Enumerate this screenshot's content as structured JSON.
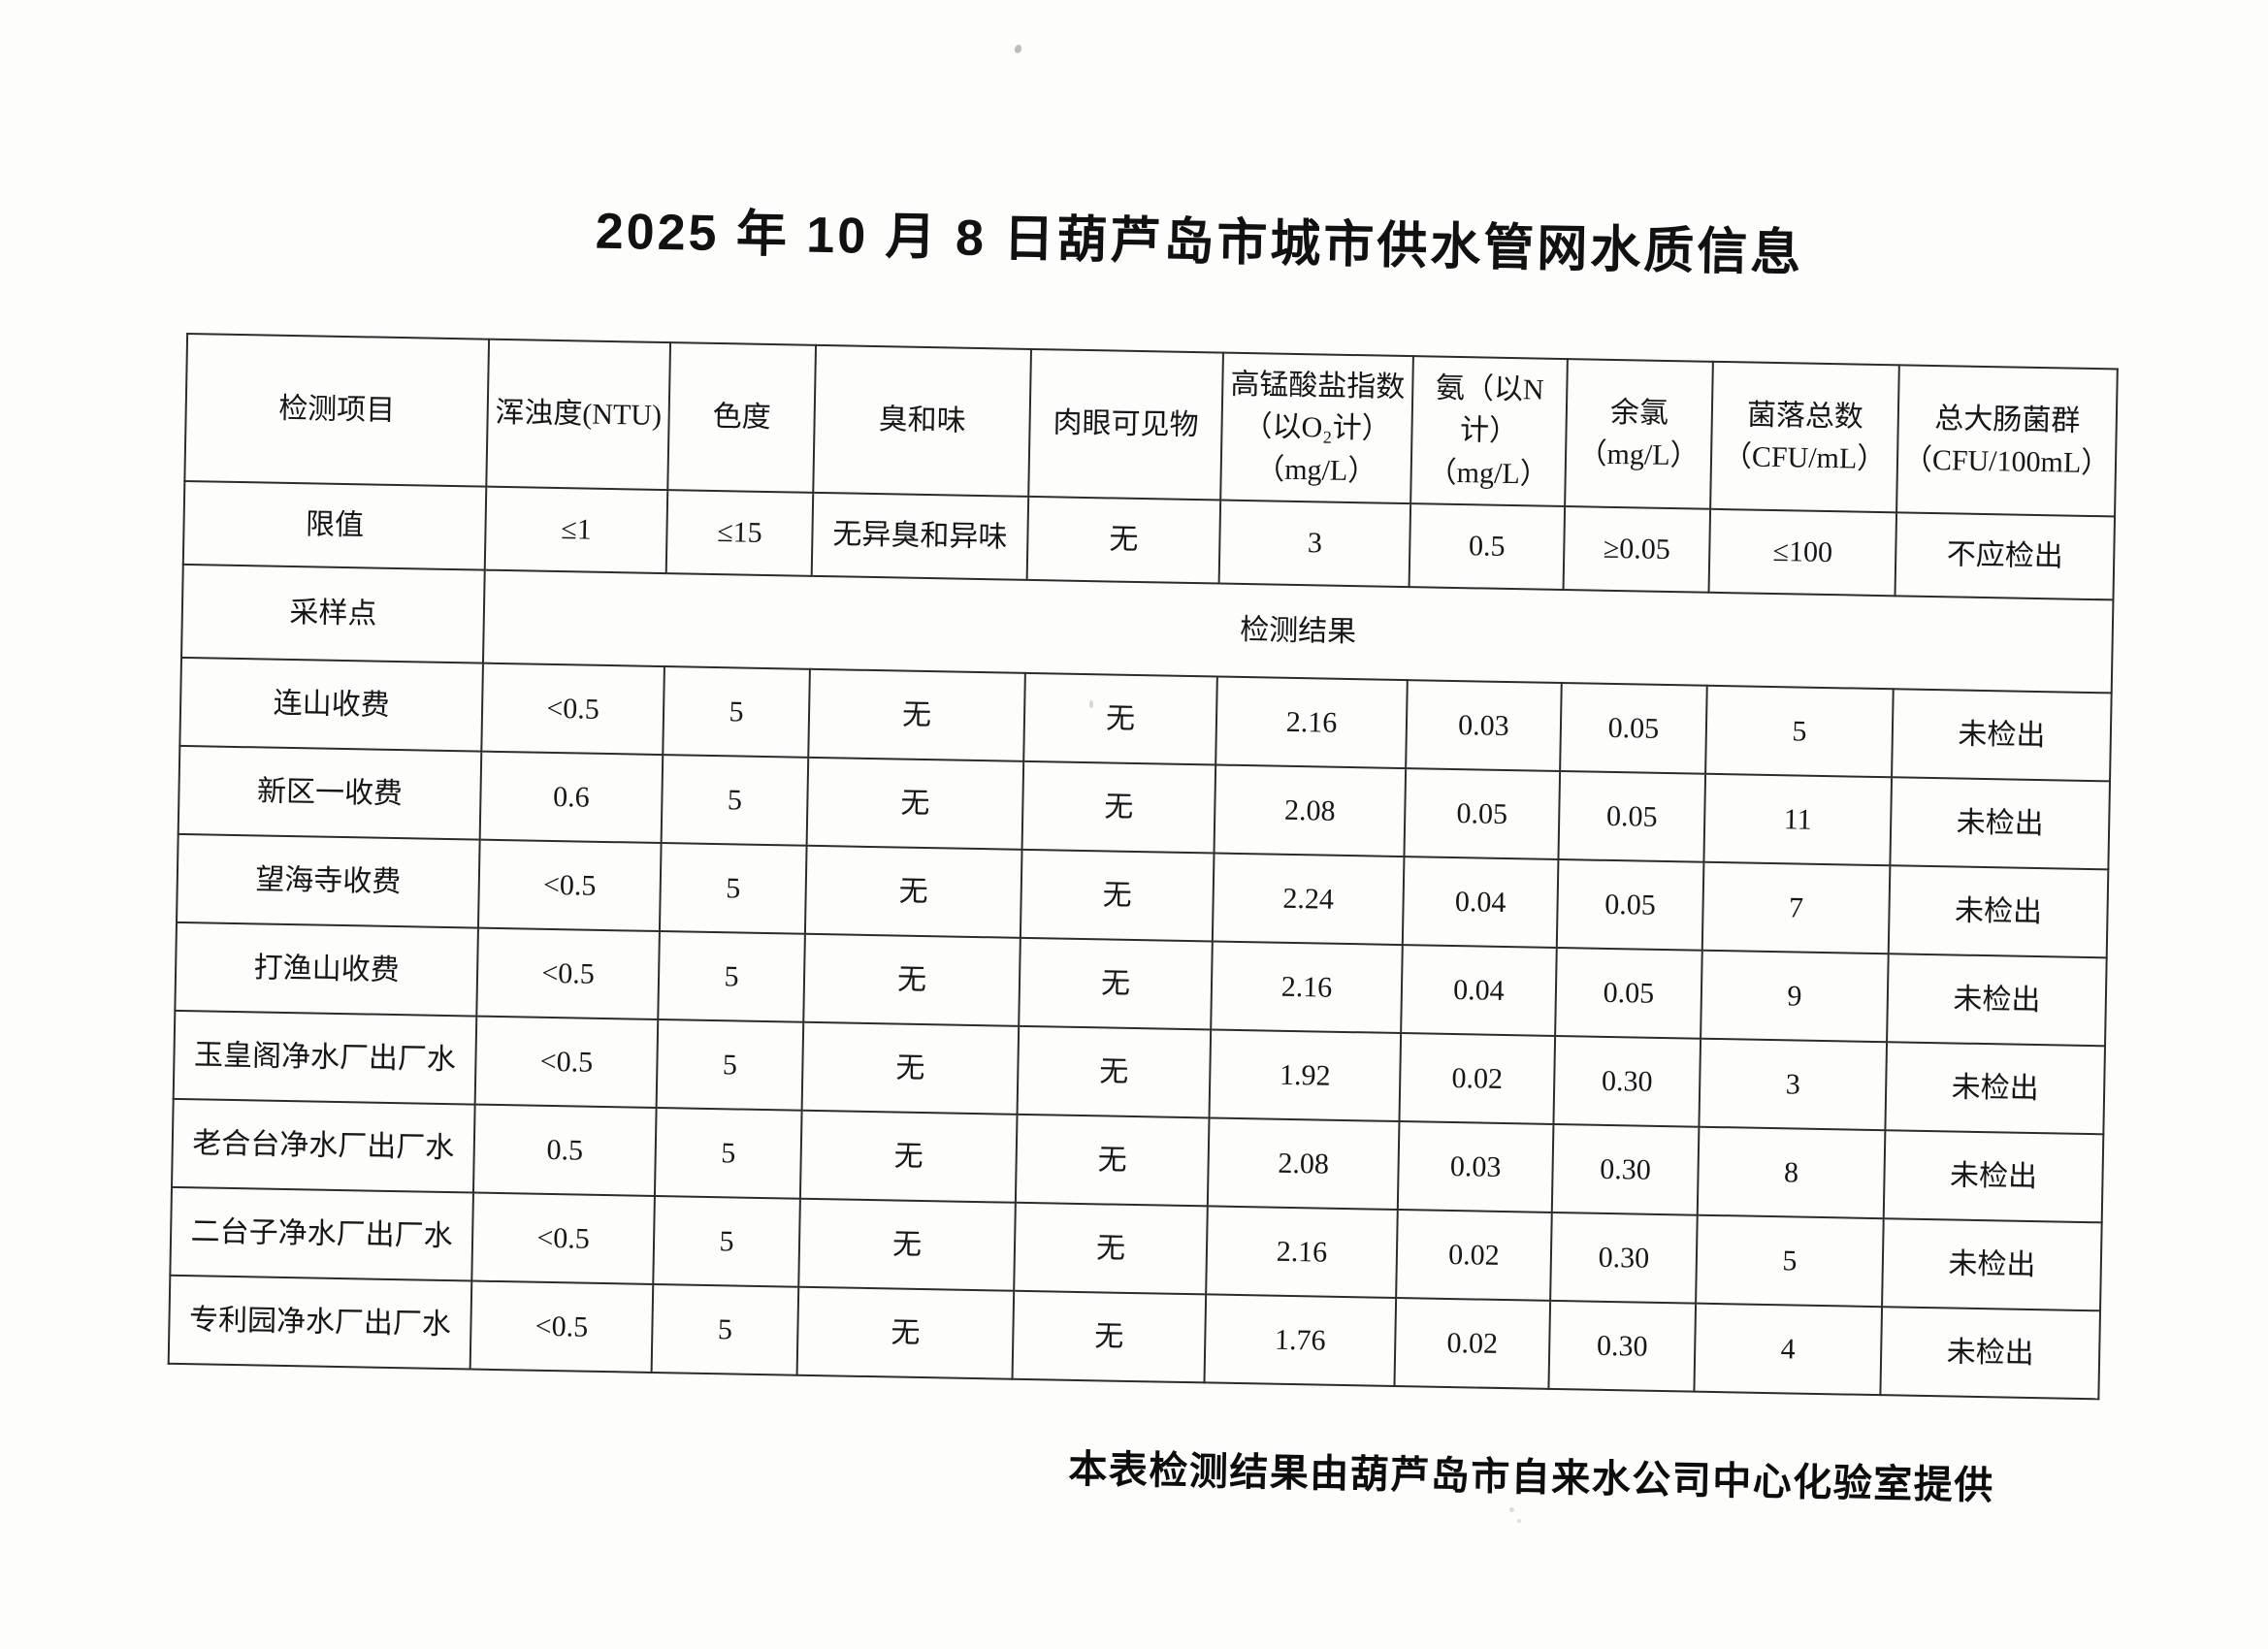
{
  "page": {
    "title": "2025 年 10 月 8 日葫芦岛市城市供水管网水质信息",
    "footer_note": "本表检测结果由葫芦岛市自来水公司中心化验室提供"
  },
  "table": {
    "headers": [
      "检测项目",
      "浑浊度(NTU)",
      "色度",
      "臭和味",
      "肉眼可见物",
      "高锰酸盐指数\n（以O₂计）\n（mg/L）",
      "氨（以N计）\n（mg/L）",
      "余氯\n（mg/L）",
      "菌落总数\n（CFU/mL）",
      "总大肠菌群\n（CFU/100mL）"
    ],
    "limit_row": {
      "label": "限值",
      "values": [
        "≤1",
        "≤15",
        "无异臭和异味",
        "无",
        "3",
        "0.5",
        "≥0.05",
        "≤100",
        "不应检出"
      ]
    },
    "section_row": {
      "label": "采样点",
      "span_label": "检测结果"
    },
    "rows": [
      {
        "point": "连山收费",
        "values": [
          "<0.5",
          "5",
          "无",
          "无",
          "2.16",
          "0.03",
          "0.05",
          "5",
          "未检出"
        ]
      },
      {
        "point": "新区一收费",
        "values": [
          "0.6",
          "5",
          "无",
          "无",
          "2.08",
          "0.05",
          "0.05",
          "11",
          "未检出"
        ]
      },
      {
        "point": "望海寺收费",
        "values": [
          "<0.5",
          "5",
          "无",
          "无",
          "2.24",
          "0.04",
          "0.05",
          "7",
          "未检出"
        ]
      },
      {
        "point": "打渔山收费",
        "values": [
          "<0.5",
          "5",
          "无",
          "无",
          "2.16",
          "0.04",
          "0.05",
          "9",
          "未检出"
        ]
      },
      {
        "point": "玉皇阁净水厂出厂水",
        "values": [
          "<0.5",
          "5",
          "无",
          "无",
          "1.92",
          "0.02",
          "0.30",
          "3",
          "未检出"
        ]
      },
      {
        "point": "老合台净水厂出厂水",
        "values": [
          "0.5",
          "5",
          "无",
          "无",
          "2.08",
          "0.03",
          "0.30",
          "8",
          "未检出"
        ]
      },
      {
        "point": "二台子净水厂出厂水",
        "values": [
          "<0.5",
          "5",
          "无",
          "无",
          "2.16",
          "0.02",
          "0.30",
          "5",
          "未检出"
        ]
      },
      {
        "point": "专利园净水厂出厂水",
        "values": [
          "<0.5",
          "5",
          "无",
          "无",
          "1.76",
          "0.02",
          "0.30",
          "4",
          "未检出"
        ]
      }
    ]
  }
}
